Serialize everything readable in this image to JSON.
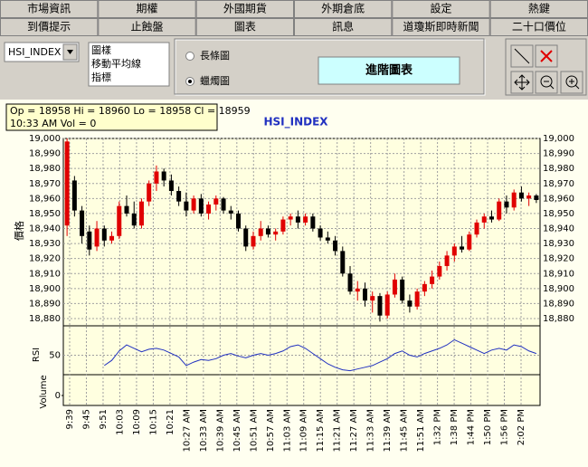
{
  "tabs": {
    "row1": [
      "市場資訊",
      "期權",
      "外國期貨",
      "外期倉底",
      "設定",
      "熱鍵"
    ],
    "row2": [
      "到價提示",
      "止蝕盤",
      "圖表",
      "訊息",
      "道瓊斯即時新聞",
      "二十口價位"
    ]
  },
  "toolbar": {
    "symbol": "HSI_INDEX",
    "list": [
      "圖樣",
      "移動平均線",
      "指標"
    ],
    "radios": [
      "長條圖",
      "蠟燭圖"
    ],
    "button": "進階圖表"
  },
  "info_box": [
    "Op = 18958 Hi = 18960 Lo = 18958 Cl = 18959",
    "10:33 AM   Vol = 0"
  ],
  "chart_data": {
    "type": "candlestick",
    "title": "HSI_INDEX",
    "y_label": "價格",
    "grid": true,
    "up_color": "#e00000",
    "down_color": "#000000",
    "categories": [
      "9:39",
      "9:45",
      "9:51",
      "10:03",
      "10:09",
      "10:15",
      "10:21",
      "10:27 AM",
      "10:33 AM",
      "10:39 AM",
      "10:45 AM",
      "10:51 AM",
      "10:57 AM",
      "11:03 AM",
      "11:09 AM",
      "11:15 AM",
      "11:21 AM",
      "11:27 AM",
      "11:33 AM",
      "11:39 AM",
      "11:45 AM",
      "11:51 AM",
      "1:32 PM",
      "1:38 PM",
      "1:44 PM",
      "1:50 PM",
      "1:56 PM",
      "2:02 PM"
    ],
    "ylim": [
      18880,
      19000
    ],
    "yticks": [
      {
        "value": 18880,
        "label": "18,880"
      },
      {
        "value": 18890,
        "label": "18,890"
      },
      {
        "value": 18900,
        "label": "18,900"
      },
      {
        "value": 18910,
        "label": "18,910"
      },
      {
        "value": 18920,
        "label": "18,920"
      },
      {
        "value": 18930,
        "label": "18,930"
      },
      {
        "value": 18940,
        "label": "18,940"
      },
      {
        "value": 18950,
        "label": "18,950"
      },
      {
        "value": 18960,
        "label": "18,960"
      },
      {
        "value": 18970,
        "label": "18,970"
      },
      {
        "value": 18980,
        "label": "18,980"
      },
      {
        "value": 18990,
        "label": "18,990"
      },
      {
        "value": 19000,
        "label": "19,000"
      }
    ],
    "candles": {
      "open": [
        18942,
        18972,
        18952,
        18938,
        18928,
        18940,
        18932,
        18935,
        18955,
        18950,
        18942,
        18958,
        18970,
        18978,
        18972,
        18965,
        18958,
        18952,
        18960,
        18950,
        18956,
        18960,
        18952,
        18950,
        18940,
        18928,
        18935,
        18940,
        18936,
        18938,
        18946,
        18948,
        18944,
        18948,
        18940,
        18934,
        18932,
        18925,
        18910,
        18898,
        18900,
        18892,
        18895,
        18882,
        18896,
        18906,
        18892,
        18888,
        18898,
        18903,
        18908,
        18915,
        18922,
        18928,
        18926,
        18936,
        18944,
        18948,
        18946,
        18958,
        18954,
        18964,
        18960,
        18962
      ],
      "high": [
        19000,
        18975,
        18955,
        18942,
        18945,
        18942,
        18938,
        18958,
        18962,
        18958,
        18960,
        18972,
        18982,
        18980,
        18976,
        18968,
        18964,
        18962,
        18963,
        18958,
        18962,
        18961,
        18955,
        18952,
        18942,
        18938,
        18945,
        18942,
        18940,
        18948,
        18950,
        18952,
        18950,
        18950,
        18942,
        18938,
        18935,
        18928,
        18915,
        18905,
        18904,
        18898,
        18897,
        18898,
        18910,
        18908,
        18896,
        18900,
        18905,
        18912,
        18918,
        18925,
        18930,
        18935,
        18938,
        18946,
        18950,
        18952,
        18960,
        18962,
        18966,
        18968,
        18964,
        18963
      ],
      "low": [
        18935,
        18948,
        18930,
        18922,
        18925,
        18928,
        18930,
        18933,
        18948,
        18940,
        18940,
        18955,
        18965,
        18968,
        18962,
        18955,
        18948,
        18950,
        18948,
        18946,
        18952,
        18950,
        18946,
        18938,
        18925,
        18926,
        18932,
        18934,
        18932,
        18936,
        18942,
        18940,
        18942,
        18938,
        18932,
        18930,
        18922,
        18908,
        18896,
        18892,
        18888,
        18884,
        18878,
        18880,
        18894,
        18890,
        18884,
        18886,
        18895,
        18900,
        18906,
        18912,
        18918,
        18924,
        18925,
        18934,
        18940,
        18944,
        18945,
        18950,
        18952,
        18958,
        18955,
        18957
      ],
      "close": [
        18998,
        18952,
        18935,
        18926,
        18940,
        18932,
        18935,
        18955,
        18950,
        18942,
        18958,
        18970,
        18978,
        18972,
        18965,
        18958,
        18952,
        18960,
        18950,
        18956,
        18960,
        18952,
        18950,
        18940,
        18928,
        18935,
        18940,
        18936,
        18938,
        18946,
        18948,
        18944,
        18948,
        18940,
        18934,
        18932,
        18925,
        18910,
        18898,
        18900,
        18892,
        18895,
        18882,
        18896,
        18906,
        18892,
        18888,
        18898,
        18903,
        18908,
        18915,
        18922,
        18928,
        18926,
        18936,
        18944,
        18948,
        18946,
        18958,
        18954,
        18964,
        18960,
        18962,
        18959
      ]
    },
    "rsi": {
      "label": "RSI",
      "color": "#2030c0",
      "ylim": [
        0,
        100
      ],
      "yticks": [
        50
      ],
      "values": [
        null,
        null,
        null,
        null,
        null,
        38,
        44,
        55,
        62,
        58,
        54,
        57,
        58,
        56,
        52,
        48,
        38,
        42,
        45,
        44,
        46,
        50,
        52,
        49,
        47,
        50,
        52,
        50,
        52,
        55,
        60,
        62,
        58,
        52,
        46,
        40,
        36,
        33,
        32,
        34,
        36,
        38,
        42,
        46,
        52,
        55,
        50,
        48,
        52,
        55,
        58,
        62,
        68,
        64,
        60,
        56,
        52,
        56,
        58,
        56,
        62,
        60,
        55,
        52
      ]
    },
    "volume": {
      "label": "Volume",
      "yticks": [
        0
      ]
    }
  }
}
